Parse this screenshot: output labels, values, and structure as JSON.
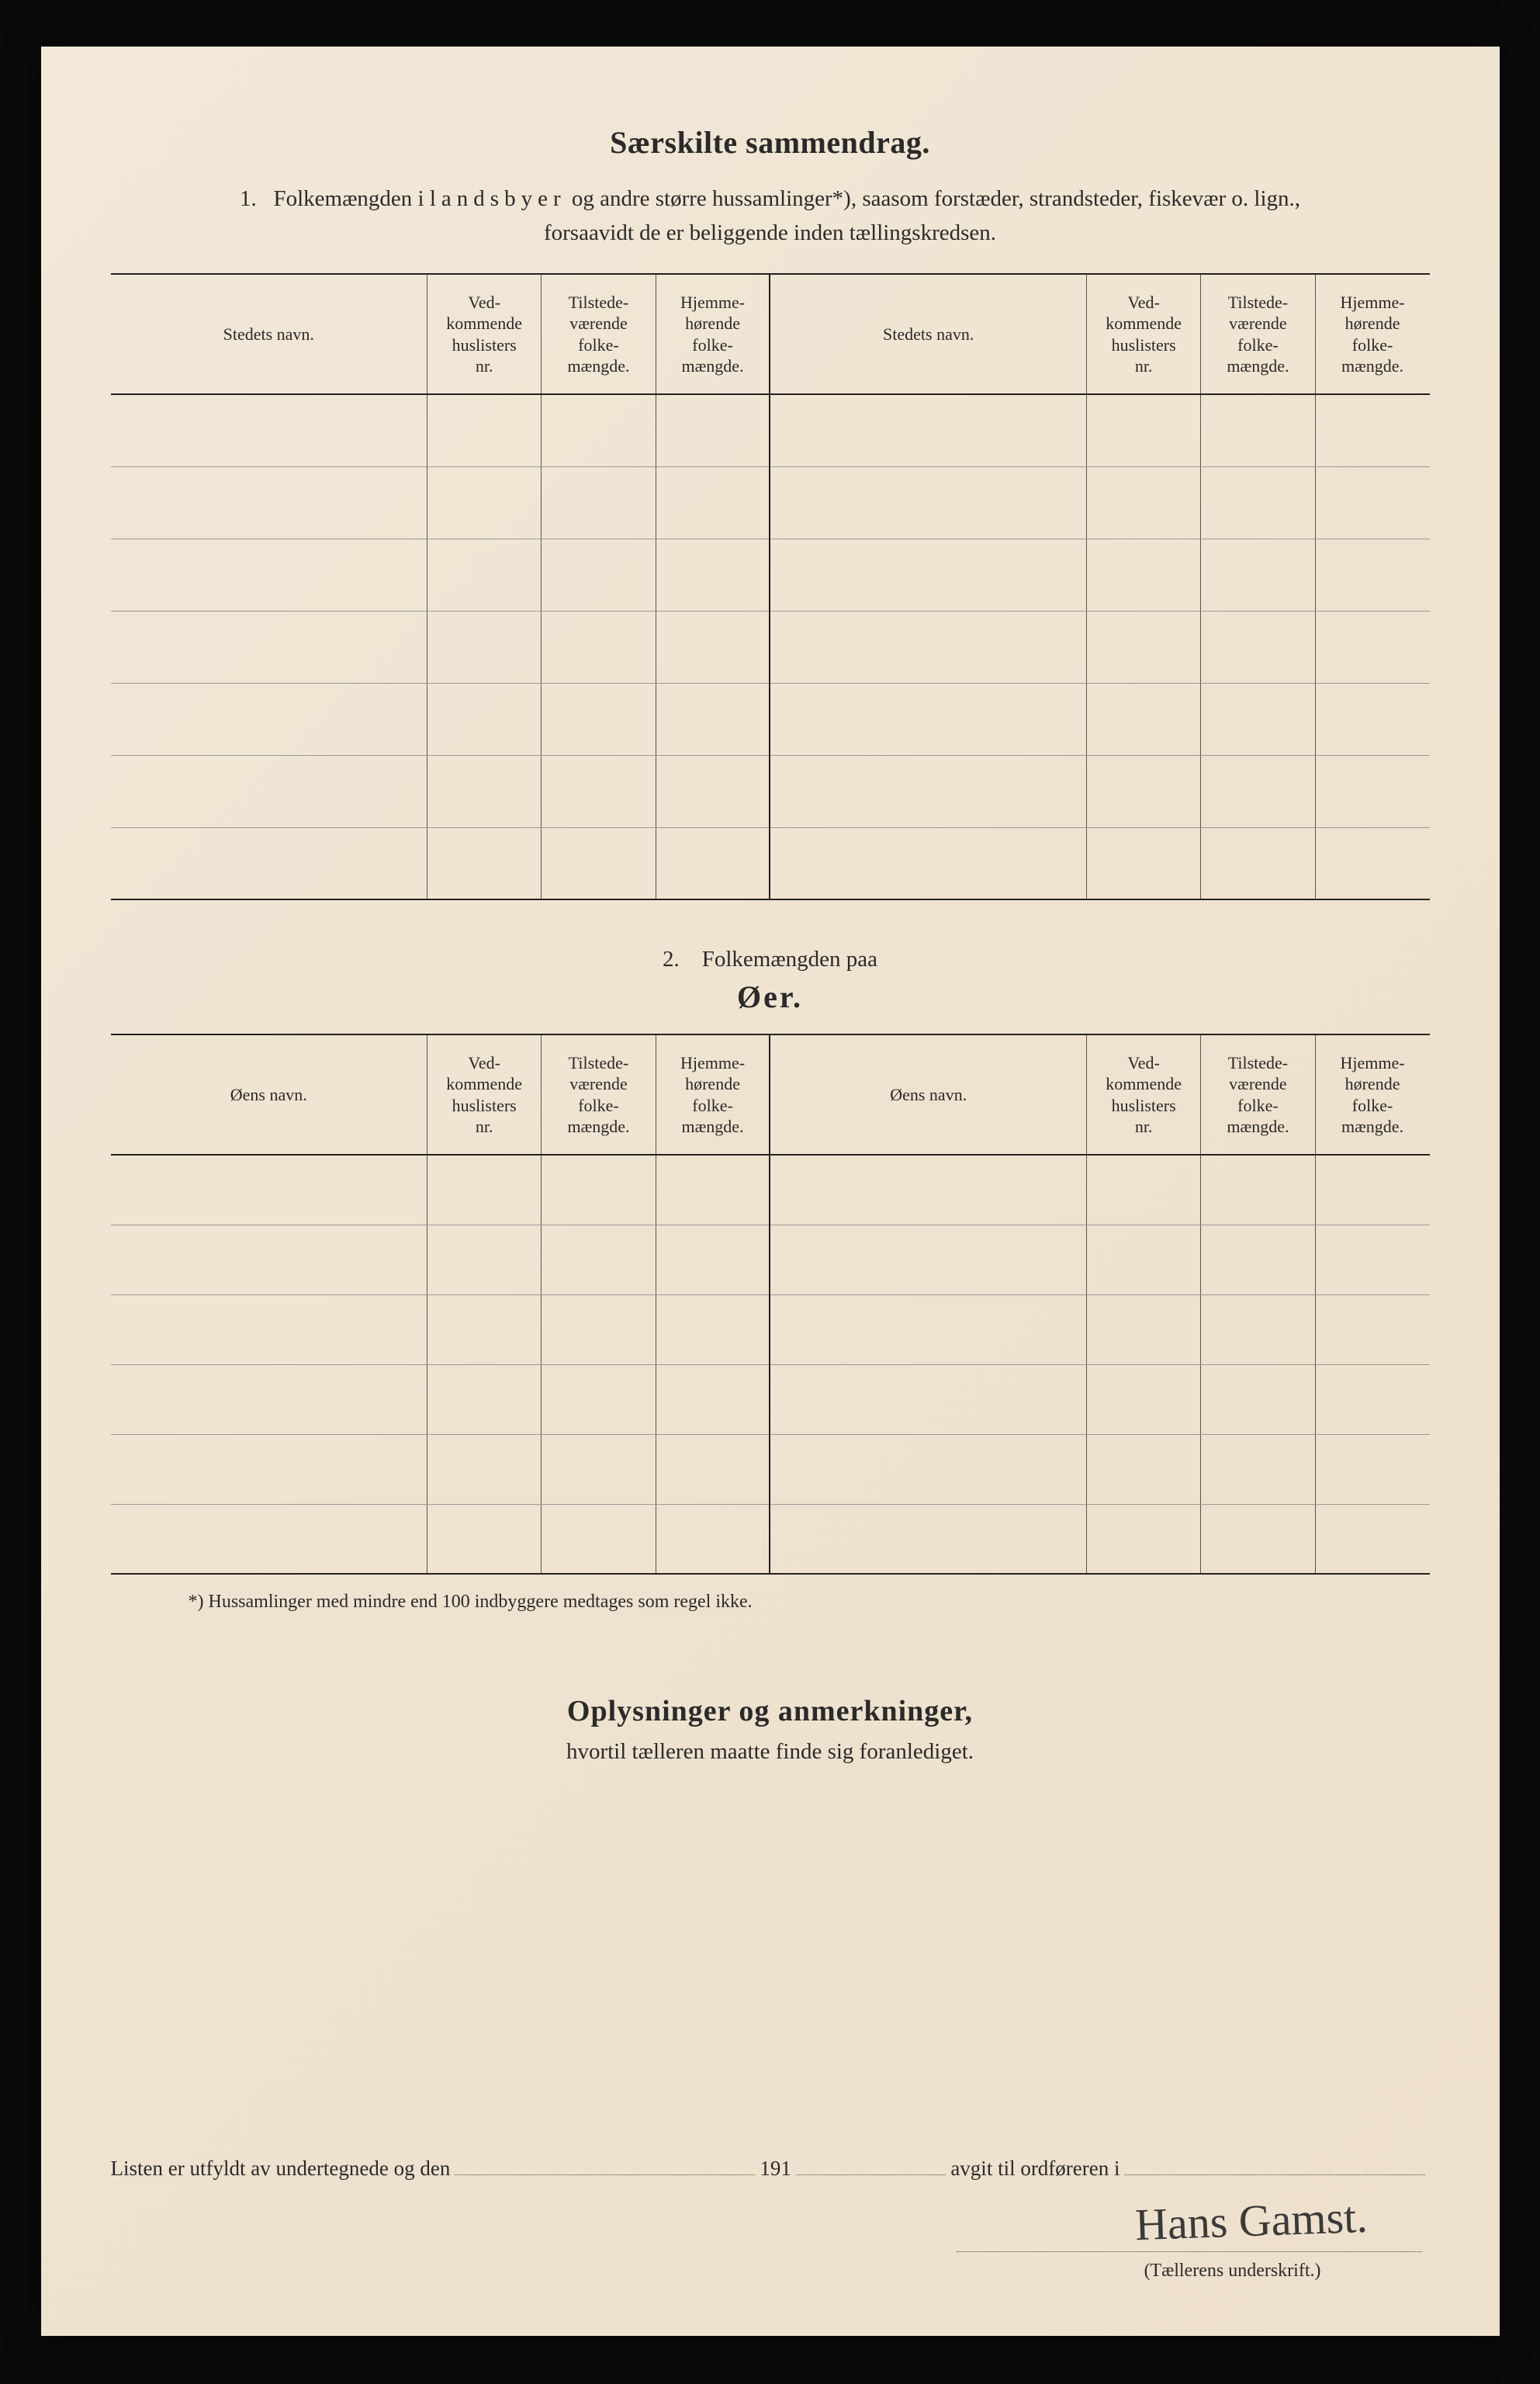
{
  "colors": {
    "page_bg": "#0a0a0a",
    "paper_bg_start": "#f2e8d8",
    "paper_bg_end": "#ede0cc",
    "text": "#2a2a2a",
    "rule_heavy": "#222222",
    "rule_light": "#999999",
    "dotted": "#444444"
  },
  "title": "Særskilte sammendrag.",
  "section1": {
    "num": "1.",
    "text_pre": "Folkemængden i ",
    "text_spaced": "landsbyer",
    "text_post": " og andre større hussamlinger*), saasom forstæder, strandsteder, fiskevær o. lign.,",
    "text_line2": "forsaavidt de er beliggende inden tællingskredsen."
  },
  "table": {
    "headers": {
      "name": "Stedets navn.",
      "col1": "Ved-\nkommende\nhuslisters\nnr.",
      "col2": "Tilstede-\nværende\nfolke-\nmængde.",
      "col3": "Hjemme-\nhørende\nfolke-\nmængde."
    },
    "rows_t1": 7,
    "rows_t2": 6,
    "col_widths_pct": {
      "name": 24,
      "num": 8.666
    }
  },
  "section2": {
    "line1": "2. Folkemængden paa",
    "line2": "Øer.",
    "headers_name": "Øens navn."
  },
  "footnote": "*)  Hussamlinger med mindre end 100 indbyggere medtages som regel ikke.",
  "remarks": {
    "title": "Oplysninger og anmerkninger,",
    "sub": "hvortil tælleren maatte finde sig foranlediget."
  },
  "signline": {
    "p1": "Listen er utfyldt av undertegnede og den",
    "p2": "191",
    "p3": "avgit til ordføreren i"
  },
  "signature": "Hans Gamst.",
  "sig_caption": "(Tællerens underskrift.)"
}
